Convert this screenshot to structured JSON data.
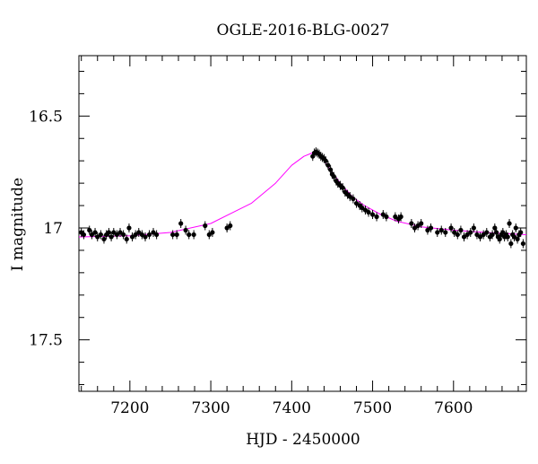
{
  "chart_data": {
    "type": "scatter",
    "title": "OGLE-2016-BLG-0027",
    "xlabel": "HJD - 2450000",
    "ylabel": "I magnitude",
    "xlim": [
      7137,
      7690
    ],
    "ylim": [
      17.73,
      16.23
    ],
    "y_inverted": true,
    "grid": false,
    "x_ticks": [
      7200,
      7300,
      7400,
      7500,
      7600
    ],
    "x_tick_labels": [
      "7200",
      "7300",
      "7400",
      "7500",
      "7600"
    ],
    "y_ticks": [
      16.5,
      17,
      17.5
    ],
    "y_tick_labels": [
      "16.5",
      "17",
      "17.5"
    ],
    "colors": {
      "points": "#000000",
      "model": "#ff00ff",
      "axes": "#000000"
    },
    "model": {
      "name": "",
      "baseline": 17.03,
      "peak_mag": 16.66,
      "peak_time": 7430,
      "description_points": [
        [
          7137,
          17.04
        ],
        [
          7200,
          17.035
        ],
        [
          7250,
          17.02
        ],
        [
          7300,
          16.98
        ],
        [
          7350,
          16.89
        ],
        [
          7380,
          16.8
        ],
        [
          7400,
          16.72
        ],
        [
          7415,
          16.68
        ],
        [
          7425,
          16.665
        ],
        [
          7432,
          16.67
        ],
        [
          7440,
          16.7
        ],
        [
          7450,
          16.75
        ],
        [
          7460,
          16.8
        ],
        [
          7475,
          16.86
        ],
        [
          7490,
          16.9
        ],
        [
          7510,
          16.94
        ],
        [
          7530,
          16.97
        ],
        [
          7560,
          16.995
        ],
        [
          7600,
          17.01
        ],
        [
          7640,
          17.02
        ],
        [
          7690,
          17.03
        ]
      ]
    },
    "series": [
      {
        "name": "",
        "points": [
          [
            7140,
            17.02
          ],
          [
            7143,
            17.03
          ],
          [
            7150,
            17.01
          ],
          [
            7153,
            17.03
          ],
          [
            7157,
            17.02
          ],
          [
            7160,
            17.04
          ],
          [
            7164,
            17.03
          ],
          [
            7168,
            17.05
          ],
          [
            7171,
            17.03
          ],
          [
            7174,
            17.02
          ],
          [
            7177,
            17.04
          ],
          [
            7180,
            17.02
          ],
          [
            7184,
            17.03
          ],
          [
            7188,
            17.02
          ],
          [
            7192,
            17.03
          ],
          [
            7196,
            17.05
          ],
          [
            7199,
            17.0
          ],
          [
            7203,
            17.04
          ],
          [
            7207,
            17.03
          ],
          [
            7211,
            17.02
          ],
          [
            7215,
            17.03
          ],
          [
            7219,
            17.04
          ],
          [
            7224,
            17.03
          ],
          [
            7229,
            17.02
          ],
          [
            7233,
            17.03
          ],
          [
            7253,
            17.03
          ],
          [
            7258,
            17.03
          ],
          [
            7263,
            16.98
          ],
          [
            7269,
            17.01
          ],
          [
            7273,
            17.03
          ],
          [
            7279,
            17.03
          ],
          [
            7293,
            16.99
          ],
          [
            7298,
            17.03
          ],
          [
            7302,
            17.02
          ],
          [
            7320,
            17.0
          ],
          [
            7324,
            16.99
          ],
          [
            7426,
            16.68
          ],
          [
            7428,
            16.665
          ],
          [
            7430,
            16.66
          ],
          [
            7432,
            16.665
          ],
          [
            7434,
            16.67
          ],
          [
            7436,
            16.68
          ],
          [
            7438,
            16.685
          ],
          [
            7440,
            16.69
          ],
          [
            7442,
            16.7
          ],
          [
            7445,
            16.72
          ],
          [
            7448,
            16.74
          ],
          [
            7450,
            16.76
          ],
          [
            7452,
            16.77
          ],
          [
            7455,
            16.79
          ],
          [
            7457,
            16.8
          ],
          [
            7460,
            16.81
          ],
          [
            7463,
            16.82
          ],
          [
            7466,
            16.84
          ],
          [
            7469,
            16.85
          ],
          [
            7472,
            16.86
          ],
          [
            7476,
            16.87
          ],
          [
            7480,
            16.89
          ],
          [
            7484,
            16.9
          ],
          [
            7487,
            16.91
          ],
          [
            7491,
            16.92
          ],
          [
            7495,
            16.93
          ],
          [
            7500,
            16.94
          ],
          [
            7505,
            16.95
          ],
          [
            7513,
            16.94
          ],
          [
            7517,
            16.95
          ],
          [
            7528,
            16.95
          ],
          [
            7532,
            16.96
          ],
          [
            7535,
            16.95
          ],
          [
            7548,
            16.98
          ],
          [
            7552,
            17.0
          ],
          [
            7556,
            16.99
          ],
          [
            7560,
            16.98
          ],
          [
            7568,
            17.01
          ],
          [
            7572,
            17.0
          ],
          [
            7580,
            17.02
          ],
          [
            7585,
            17.01
          ],
          [
            7590,
            17.02
          ],
          [
            7597,
            17.0
          ],
          [
            7601,
            17.02
          ],
          [
            7605,
            17.03
          ],
          [
            7609,
            17.01
          ],
          [
            7613,
            17.04
          ],
          [
            7617,
            17.03
          ],
          [
            7621,
            17.02
          ],
          [
            7625,
            17.0
          ],
          [
            7629,
            17.03
          ],
          [
            7633,
            17.04
          ],
          [
            7637,
            17.03
          ],
          [
            7641,
            17.02
          ],
          [
            7645,
            17.04
          ],
          [
            7648,
            17.03
          ],
          [
            7651,
            17.0
          ],
          [
            7653,
            17.02
          ],
          [
            7655,
            17.04
          ],
          [
            7657,
            17.05
          ],
          [
            7659,
            17.03
          ],
          [
            7661,
            17.02
          ],
          [
            7663,
            17.04
          ],
          [
            7665,
            17.03
          ],
          [
            7667,
            17.04
          ],
          [
            7669,
            16.98
          ],
          [
            7671,
            17.07
          ],
          [
            7673,
            17.03
          ],
          [
            7675,
            17.04
          ],
          [
            7677,
            17.0
          ],
          [
            7679,
            17.05
          ],
          [
            7681,
            17.03
          ],
          [
            7683,
            17.02
          ],
          [
            7686,
            17.07
          ]
        ]
      }
    ]
  }
}
